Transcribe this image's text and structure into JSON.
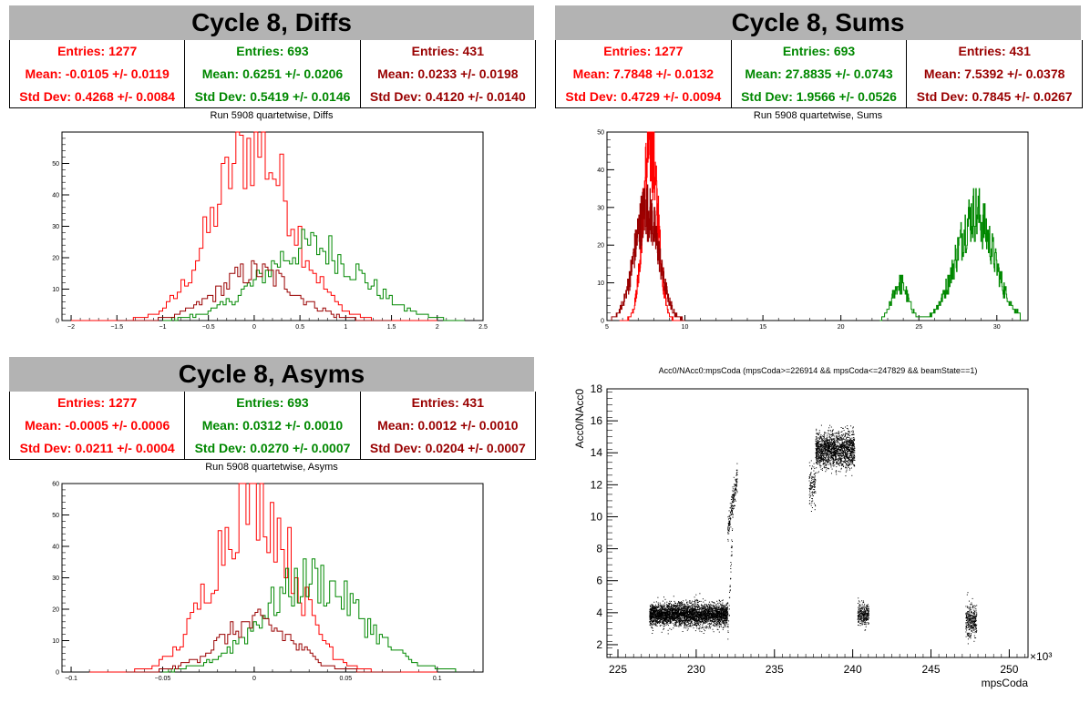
{
  "colors": {
    "series1": "#ff0000",
    "series2": "#008800",
    "series3": "#990000",
    "titlebar": "#b3b3b3"
  },
  "panels": {
    "diffs": {
      "title": "Cycle 8, Diffs",
      "run_title": "Run 5908 quartetwise, Diffs",
      "stats": [
        {
          "entries": "Entries: 1277",
          "mean": "Mean: -0.0105 +/- 0.0119",
          "std": "Std Dev: 0.4268 +/- 0.0084"
        },
        {
          "entries": "Entries: 693",
          "mean": "Mean: 0.6251 +/- 0.0206",
          "std": "Std Dev: 0.5419 +/- 0.0146"
        },
        {
          "entries": "Entries: 431",
          "mean": "Mean: 0.0233 +/- 0.0198",
          "std": "Std Dev: 0.4120 +/- 0.0140"
        }
      ]
    },
    "sums": {
      "title": "Cycle 8, Sums",
      "run_title": "Run 5908 quartetwise, Sums",
      "stats": [
        {
          "entries": "Entries: 1277",
          "mean": "Mean: 7.7848 +/- 0.0132",
          "std": "Std Dev: 0.4729 +/- 0.0094"
        },
        {
          "entries": "Entries: 693",
          "mean": "Mean: 27.8835 +/- 0.0743",
          "std": "Std Dev: 1.9566 +/- 0.0526"
        },
        {
          "entries": "Entries: 431",
          "mean": "Mean: 7.5392 +/- 0.0378",
          "std": "Std Dev: 0.7845 +/- 0.0267"
        }
      ]
    },
    "asyms": {
      "title": "Cycle 8, Asyms",
      "run_title": "Run 5908 quartetwise, Asyms",
      "stats": [
        {
          "entries": "Entries: 1277",
          "mean": "Mean: -0.0005 +/- 0.0006",
          "std": "Std Dev: 0.0211 +/- 0.0004"
        },
        {
          "entries": "Entries: 693",
          "mean": "Mean: 0.0312 +/- 0.0010",
          "std": "Std Dev: 0.0270 +/- 0.0007"
        },
        {
          "entries": "Entries: 431",
          "mean": "Mean: 0.0012 +/- 0.0010",
          "std": "Std Dev: 0.0204 +/- 0.0007"
        }
      ]
    },
    "scatter": {
      "title": "Acc0/NAcc0:mpsCoda (mpsCoda>=226914 && mpsCoda<=247829 && beamState==1)"
    }
  },
  "chart_data": [
    {
      "type": "histogram",
      "name": "diffs",
      "xlim": [
        -2.1,
        2.5
      ],
      "ylim": [
        0,
        60
      ],
      "xticks": [
        -2,
        -1.5,
        -1,
        -0.5,
        0,
        0.5,
        1,
        1.5,
        2,
        2.5
      ],
      "xtick_labels": [
        "−2",
        "−1.5",
        "−1",
        "−0.5",
        "0",
        "0.5",
        "1",
        "1.5",
        "2",
        "2.5"
      ],
      "yticks": [
        0,
        10,
        20,
        30,
        40,
        50
      ],
      "series": [
        {
          "color": "#ff0000",
          "mean": -0.0105,
          "sd": 0.4268,
          "peak": 57,
          "lo": -2.0,
          "hi": 2.0,
          "bins": 100
        },
        {
          "color": "#008800",
          "mean": 0.6251,
          "sd": 0.5419,
          "peak": 24,
          "lo": -1.0,
          "hi": 2.3,
          "bins": 100
        },
        {
          "color": "#990000",
          "mean": 0.0233,
          "sd": 0.412,
          "peak": 16,
          "lo": -1.5,
          "hi": 1.5,
          "bins": 100
        }
      ]
    },
    {
      "type": "histogram",
      "name": "sums",
      "xlim": [
        5,
        32
      ],
      "ylim": [
        0,
        50
      ],
      "xticks": [
        5,
        10,
        15,
        20,
        25,
        30
      ],
      "xtick_labels": [
        "5",
        "10",
        "15",
        "20",
        "25",
        "30"
      ],
      "yticks": [
        0,
        10,
        20,
        30,
        40,
        50
      ],
      "series": [
        {
          "color": "#ff0000",
          "mean": 7.7848,
          "sd": 0.4729,
          "peak": 48,
          "lo": 5.8,
          "hi": 10,
          "bins": 300
        },
        {
          "color": "#008800",
          "mean": 28.6,
          "sd": 1.2,
          "peak": 29,
          "lo": 22.5,
          "hi": 31.5,
          "bins": 300,
          "extra": {
            "mean": 23.8,
            "sd": 0.5,
            "peak": 10
          }
        },
        {
          "color": "#990000",
          "mean": 7.5392,
          "sd": 0.7845,
          "peak": 30,
          "lo": 5.3,
          "hi": 10,
          "bins": 300
        }
      ]
    },
    {
      "type": "histogram",
      "name": "asyms",
      "xlim": [
        -0.105,
        0.125
      ],
      "ylim": [
        0,
        60
      ],
      "xticks": [
        -0.1,
        -0.05,
        0,
        0.05,
        0.1
      ],
      "xtick_labels": [
        "−0.1",
        "−0.05",
        "0",
        "0.05",
        "0.1"
      ],
      "yticks": [
        0,
        10,
        20,
        30,
        40,
        50,
        60
      ],
      "series": [
        {
          "color": "#ff0000",
          "mean": -0.0005,
          "sd": 0.0211,
          "peak": 58,
          "lo": -0.09,
          "hi": 0.1,
          "bins": 100
        },
        {
          "color": "#008800",
          "mean": 0.0312,
          "sd": 0.027,
          "peak": 30,
          "lo": -0.05,
          "hi": 0.11,
          "bins": 100
        },
        {
          "color": "#990000",
          "mean": 0.0012,
          "sd": 0.0204,
          "peak": 16,
          "lo": -0.07,
          "hi": 0.08,
          "bins": 100
        }
      ]
    },
    {
      "type": "scatter",
      "name": "acc0-vs-mpscoda",
      "xlabel": "mpsCoda",
      "ylabel": "Acc0/NAcc0",
      "x_multiplier": "×10³",
      "xlim": [
        224.3,
        251.2
      ],
      "ylim": [
        1.2,
        18
      ],
      "xticks": [
        225,
        230,
        235,
        240,
        245,
        250
      ],
      "yticks": [
        2,
        4,
        6,
        8,
        10,
        12,
        14,
        16,
        18
      ],
      "clusters": [
        {
          "x": [
            227.0,
            232.0
          ],
          "y_center": 3.9,
          "y_spread": 0.35,
          "n": 3500
        },
        {
          "x": [
            232.0,
            232.6
          ],
          "y_from": 9.2,
          "y_to": 12.5,
          "n": 200
        },
        {
          "x": [
            232.0,
            232.3
          ],
          "y_from": 2.5,
          "y_to": 9.0,
          "n": 40
        },
        {
          "x": [
            237.2,
            237.6
          ],
          "y_center": 12.0,
          "y_spread": 0.6,
          "n": 120
        },
        {
          "x": [
            237.6,
            240.1
          ],
          "y_center": 14.2,
          "y_spread": 0.55,
          "n": 1600
        },
        {
          "x": [
            240.3,
            241.0
          ],
          "y_center": 3.9,
          "y_spread": 0.35,
          "n": 300
        },
        {
          "x": [
            247.2,
            247.9
          ],
          "y_center": 3.5,
          "y_spread": 0.5,
          "n": 300
        }
      ]
    }
  ]
}
